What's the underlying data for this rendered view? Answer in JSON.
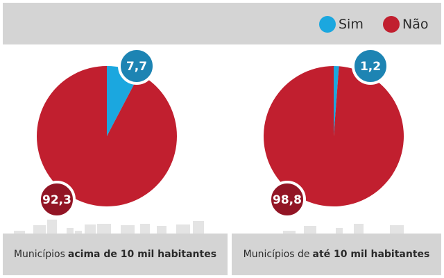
{
  "legend": {
    "items": [
      {
        "label": "Sim",
        "color": "#1ba7df"
      },
      {
        "label": "Não",
        "color": "#c11f2f"
      }
    ]
  },
  "chart_data": [
    {
      "type": "pie",
      "title": "Municípios acima de 10 mil habitantes",
      "caption_plain": "Municípios",
      "caption_bold": "acima de 10 mil habitantes",
      "series": [
        {
          "name": "Sim",
          "value": 7.7,
          "label": "7,7",
          "color": "#1ba7df",
          "badge_color": "#1d84b3"
        },
        {
          "name": "Não",
          "value": 92.3,
          "label": "92,3",
          "color": "#c11f2f",
          "badge_color": "#921525"
        }
      ]
    },
    {
      "type": "pie",
      "title": "Municípios de até 10 mil habitantes",
      "caption_plain": "Municípios de",
      "caption_bold": "até 10 mil habitantes",
      "series": [
        {
          "name": "Sim",
          "value": 1.2,
          "label": "1,2",
          "color": "#1ba7df",
          "badge_color": "#1d84b3"
        },
        {
          "name": "Não",
          "value": 98.8,
          "label": "98,8",
          "color": "#c11f2f",
          "badge_color": "#921525"
        }
      ]
    }
  ]
}
